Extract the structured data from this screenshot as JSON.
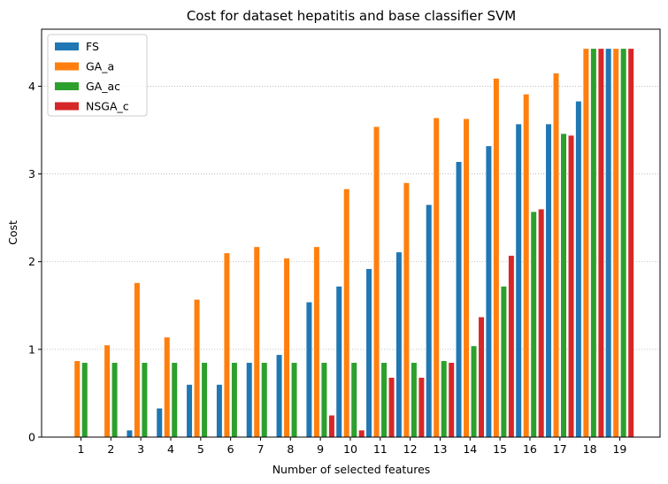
{
  "chart_data": {
    "type": "bar",
    "title": "Cost for dataset hepatitis and base classifier SVM",
    "xlabel": "Number of selected features",
    "ylabel": "Cost",
    "categories": [
      "1",
      "2",
      "3",
      "4",
      "5",
      "6",
      "7",
      "8",
      "9",
      "10",
      "11",
      "12",
      "13",
      "14",
      "15",
      "16",
      "17",
      "18",
      "19"
    ],
    "ylim": [
      0,
      4.65
    ],
    "yticks": [
      "0",
      "1",
      "2",
      "3",
      "4"
    ],
    "grid": "y dotted",
    "legend_position": "top-left",
    "series": [
      {
        "name": "FS",
        "color": "#1f77b4",
        "values": [
          0,
          0,
          0.08,
          0.33,
          0.6,
          0.6,
          0.85,
          0.94,
          1.54,
          1.72,
          1.92,
          2.11,
          2.65,
          3.14,
          3.32,
          3.57,
          3.57,
          3.83,
          4.43
        ]
      },
      {
        "name": "GA_a",
        "color": "#ff7f0e",
        "values": [
          0.87,
          1.05,
          1.76,
          1.14,
          1.57,
          2.1,
          2.17,
          2.04,
          2.17,
          2.83,
          3.54,
          2.9,
          3.64,
          3.63,
          4.09,
          3.91,
          4.15,
          4.43,
          4.43
        ]
      },
      {
        "name": "GA_ac",
        "color": "#2ca02c",
        "values": [
          0.85,
          0.85,
          0.85,
          0.85,
          0.85,
          0.85,
          0.85,
          0.85,
          0.85,
          0.85,
          0.85,
          0.85,
          0.87,
          1.04,
          1.72,
          2.57,
          3.46,
          4.43,
          4.43
        ]
      },
      {
        "name": "NSGA_c",
        "color": "#d62728",
        "values": [
          0,
          0,
          0,
          0,
          0,
          0,
          0,
          0,
          0.25,
          0.08,
          0.68,
          0.68,
          0.85,
          1.37,
          2.07,
          2.6,
          3.44,
          4.43,
          4.43
        ]
      }
    ]
  }
}
